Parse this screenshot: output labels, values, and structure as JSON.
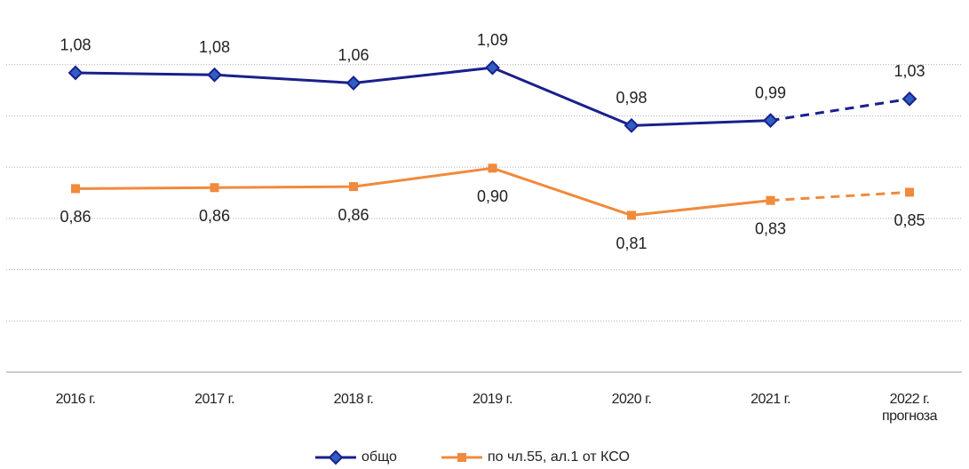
{
  "chart_data": {
    "type": "line",
    "categories": [
      "2016 г.",
      "2017 г.",
      "2018 г.",
      "2019 г.",
      "2020 г.",
      "2021 г.",
      "2022 г. прогноза"
    ],
    "series": [
      {
        "name": "общо",
        "color": "#1a1f8c",
        "marker_color": "#2f5fc0",
        "marker": "diamond",
        "values": [
          1.084,
          1.08,
          1.064,
          1.094,
          0.981,
          0.991,
          1.033
        ],
        "value_labels": [
          "1,08",
          "1,08",
          "1,06",
          "1,09",
          "0,98",
          "0,99",
          "1,03"
        ],
        "label_position": "above"
      },
      {
        "name": "по чл.55, ал.1 от КСО",
        "color": "#f08a3c",
        "marker_color": "#f08a3c",
        "marker": "square",
        "values": [
          0.858,
          0.86,
          0.862,
          0.898,
          0.806,
          0.835,
          0.851
        ],
        "value_labels": [
          "0,86",
          "0,86",
          "0,86",
          "0,90",
          "0,81",
          "0,83",
          "0,85"
        ],
        "label_position": "below"
      }
    ],
    "dashed_from_index": 5,
    "ylim": [
      0.5,
      1.2
    ],
    "yticks": [
      0.5,
      0.6,
      0.7,
      0.8,
      0.9,
      1.0,
      1.1
    ],
    "grid": true,
    "legend": "bottom"
  }
}
